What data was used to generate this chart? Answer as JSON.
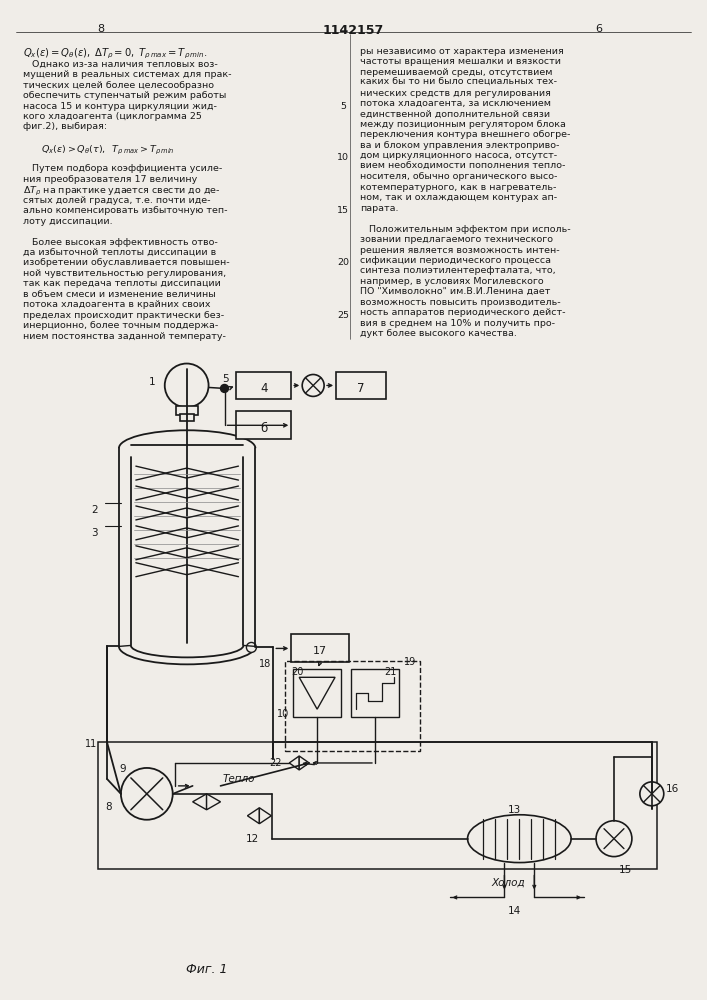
{
  "page_width": 7.07,
  "page_height": 10.0,
  "bg": "#f0ede8",
  "lc": "#1a1a1a",
  "title": "1142157",
  "page_left": "8",
  "page_right": "6",
  "fig_caption": "Фиг. 1"
}
